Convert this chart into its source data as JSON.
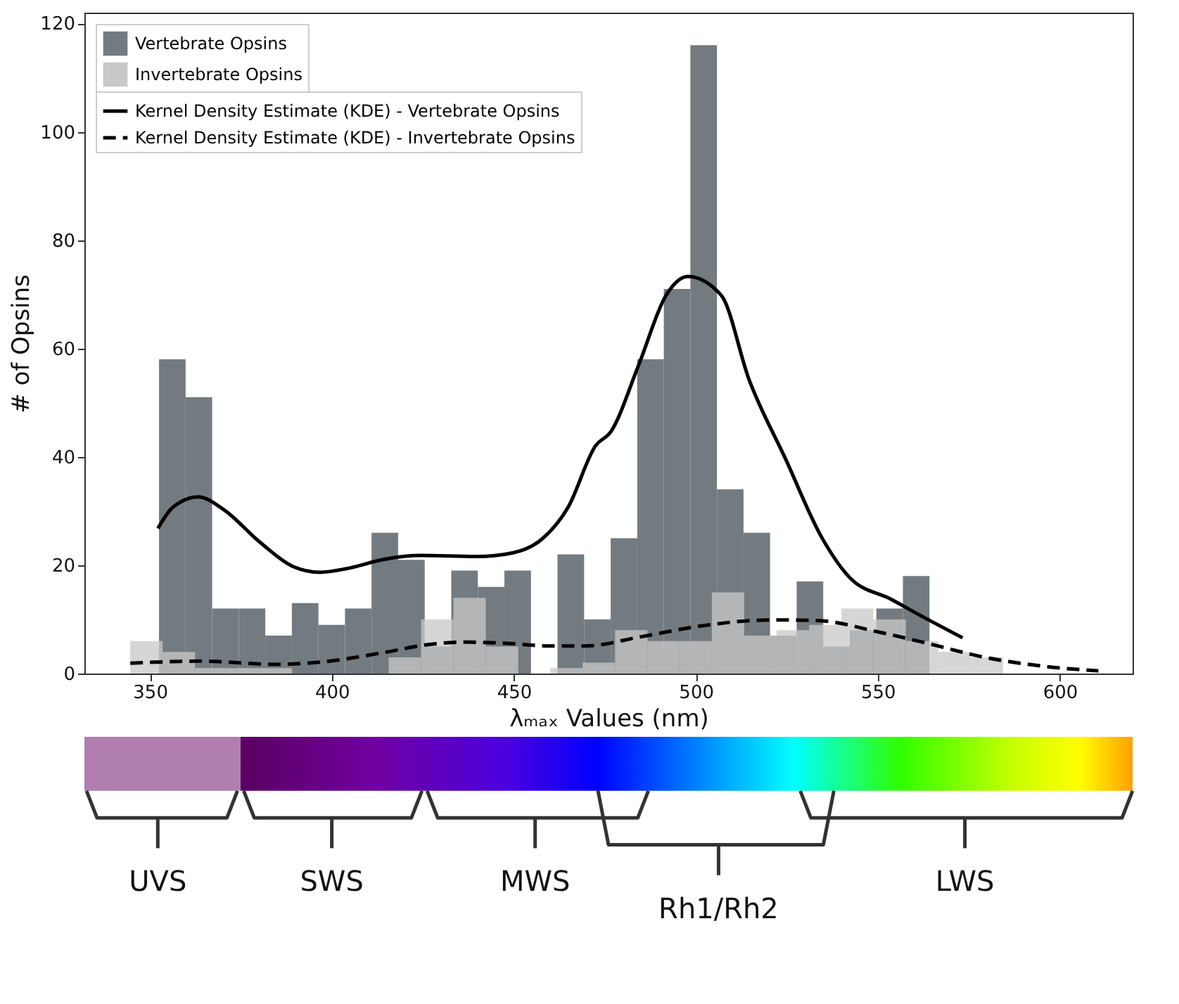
{
  "chart_data": {
    "type": "histogram",
    "xlabel": "λₘₐₓ Values (nm)",
    "ylabel": "# of Opsins",
    "xlim": [
      332,
      620
    ],
    "ylim": [
      0,
      122
    ],
    "xticks": [
      350,
      400,
      450,
      500,
      550,
      600
    ],
    "yticks": [
      0,
      20,
      40,
      60,
      80,
      100,
      120
    ],
    "legend": "top left",
    "grid": false,
    "series": [
      {
        "name": "Vertebrate Opsins",
        "color": "#737b80",
        "bins": [
          352.5,
          359.8,
          367.1,
          374.4,
          381.7,
          389,
          396.3,
          403.6,
          410.9,
          418.2,
          425.5,
          432.8,
          440.1,
          447.4,
          454.7,
          462,
          469.3,
          476.6,
          483.9,
          491.2,
          498.5,
          505.8,
          513.1,
          520.4,
          527.7,
          535,
          542.3,
          549.6,
          556.9,
          564.2
        ],
        "values": [
          58,
          51,
          12,
          12,
          7,
          13,
          9,
          12,
          26,
          21,
          5,
          19,
          16,
          19,
          0,
          22,
          10,
          25,
          58,
          71,
          116,
          34,
          26,
          7,
          17,
          5,
          8,
          12,
          18
        ]
      },
      {
        "name": "Kernel Density Estimate (KDE) - Vertebrate Opsins",
        "type": "line",
        "line_style": "solid",
        "color": "#000000",
        "x": [
          352.2,
          356.3,
          363.3,
          370.2,
          380.3,
          389.2,
          396.7,
          404.3,
          414.4,
          424.5,
          439.7,
          449.8,
          457.3,
          464.9,
          472.5,
          476.6,
          484.2,
          491.8,
          497.8,
          507,
          514.6,
          524.6,
          534.7,
          542.3,
          553.7,
          562.6,
          573.3
        ],
        "values": [
          26.8,
          30.7,
          32.6,
          30.3,
          24.2,
          19.8,
          18.7,
          19.4,
          21.1,
          21.8,
          21.6,
          22.3,
          24.6,
          30.7,
          42.1,
          44.6,
          56.8,
          69.8,
          73.3,
          69.8,
          54.3,
          39.7,
          25,
          17.7,
          13.7,
          10.4,
          6.6
        ]
      },
      {
        "name": "Invertebrate Opsins",
        "color": "#c8c8c8",
        "bins": [
          344.6,
          353.5,
          362.4,
          371.2,
          380.1,
          389,
          415.6,
          424.5,
          433.4,
          442.3,
          451.2,
          460,
          468.9,
          477.8,
          486.7,
          495.6,
          504.4,
          513.3,
          522.2,
          531.1,
          540,
          548.8,
          557.7,
          566.6,
          575.5,
          584.4
        ],
        "values": [
          6,
          4,
          1,
          1,
          1,
          0,
          3,
          10,
          14,
          5,
          0,
          1,
          2,
          8,
          6,
          6,
          15,
          7,
          8,
          9,
          12,
          10,
          6,
          4,
          3
        ]
      },
      {
        "name": "Kernel Density Estimate (KDE) - Invertebrate Opsins",
        "type": "line",
        "line_style": "dashed",
        "color": "#000000",
        "x": [
          344.6,
          363.9,
          384.1,
          396.7,
          414.4,
          427,
          437.1,
          452.3,
          458.6,
          469.9,
          485,
          501.5,
          520.5,
          533,
          550.7,
          564.7,
          578.6,
          596.2,
          610.6
        ],
        "values": [
          1.9,
          2.3,
          1.7,
          2.1,
          3.9,
          5.4,
          5.8,
          5.4,
          5.1,
          5.1,
          6.8,
          8.8,
          9.9,
          9.8,
          7.6,
          5.4,
          3.1,
          1.3,
          0.5
        ]
      }
    ],
    "annotations": [
      "UVS",
      "SWS",
      "MWS",
      "Rh1/Rh2",
      "LWS"
    ]
  }
}
